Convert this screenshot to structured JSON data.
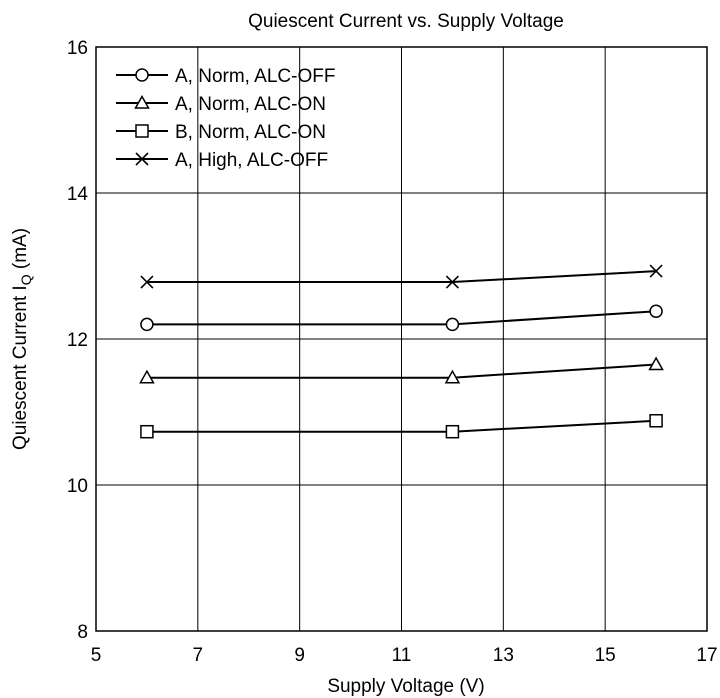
{
  "chart_data": {
    "type": "line",
    "title": "Quiescent Current vs. Supply Voltage",
    "xlabel": "Supply Voltage  (V)",
    "ylabel": "Quiescent Current  I",
    "ylabel_subscript": "Q",
    "ylabel_unit": "  (mA)",
    "xlim": [
      5,
      17
    ],
    "ylim": [
      8,
      16
    ],
    "xticks": [
      5,
      7,
      9,
      11,
      13,
      15,
      17
    ],
    "yticks": [
      8,
      10,
      12,
      14,
      16
    ],
    "grid": true,
    "legend_position": "top-left",
    "series": [
      {
        "name": "A, Norm, ALC-OFF",
        "marker": "circle",
        "x": [
          6,
          12,
          16
        ],
        "y": [
          12.2,
          12.2,
          12.38
        ]
      },
      {
        "name": "A, Norm, ALC-ON",
        "marker": "triangle",
        "x": [
          6,
          12,
          16
        ],
        "y": [
          11.47,
          11.47,
          11.65
        ]
      },
      {
        "name": "B, Norm, ALC-ON",
        "marker": "square",
        "x": [
          6,
          12,
          16
        ],
        "y": [
          10.73,
          10.73,
          10.88
        ]
      },
      {
        "name": "A, High, ALC-OFF",
        "marker": "x",
        "x": [
          6,
          12,
          16
        ],
        "y": [
          12.78,
          12.78,
          12.93
        ]
      }
    ]
  }
}
